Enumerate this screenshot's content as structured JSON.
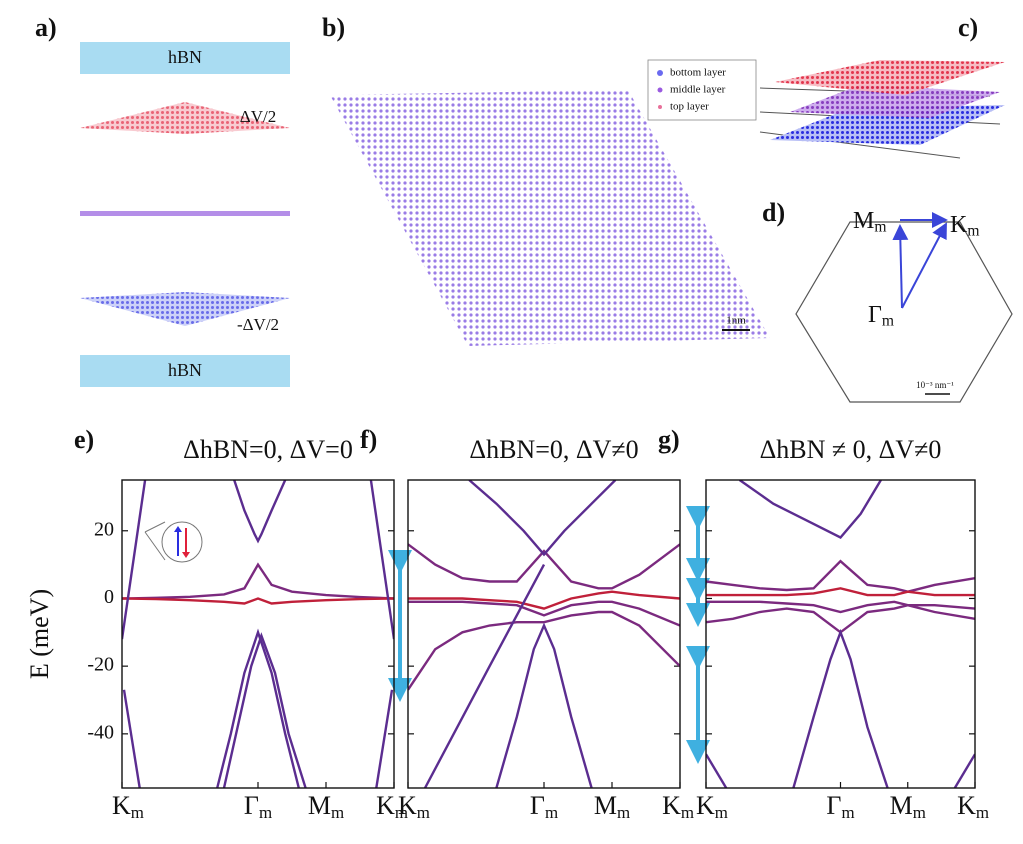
{
  "panels": {
    "a": {
      "label": "a)",
      "top_layer": "hBN",
      "bottom_layer": "hBN",
      "top_potential": "ΔV/2",
      "bottom_potential": "-ΔV/2"
    },
    "b": {
      "label": "b)",
      "legend": [
        "bottom layer",
        "middle layer",
        "top layer"
      ],
      "scale_bar": "1nm"
    },
    "c": {
      "label": "c)"
    },
    "d": {
      "label": "d)",
      "points": [
        "Mm",
        "Km",
        "Γm"
      ],
      "scale_bar": "10⁻³ nm⁻¹"
    }
  },
  "chart_data": [
    {
      "type": "line",
      "panel_label": "e)",
      "title": "ΔhBN=0, ΔV=0",
      "ylabel": "E (meV)",
      "ylim": [
        -56,
        35
      ],
      "yticks": [
        -40,
        -20,
        0,
        20
      ],
      "xlim": [
        0,
        4
      ],
      "xticks": [
        {
          "value": 0,
          "label": "Km"
        },
        {
          "value": 2,
          "label": "Γm"
        },
        {
          "value": 3,
          "label": "Mm"
        },
        {
          "value": 4,
          "label": "Km"
        }
      ],
      "series": [
        {
          "color": "#7b2a7f",
          "x": [
            0,
            0.5,
            1,
            1.5,
            1.8,
            2,
            2.2,
            2.5,
            3,
            3.5,
            4
          ],
          "values": [
            0,
            0.2,
            0.5,
            1.2,
            3,
            10,
            4,
            2,
            1,
            0.4,
            0
          ]
        },
        {
          "color": "#c0203a",
          "x": [
            0,
            0.5,
            1,
            1.5,
            1.8,
            2,
            2.2,
            2.5,
            3,
            3.5,
            4
          ],
          "values": [
            0,
            -0.2,
            -0.5,
            -1,
            -1.5,
            0,
            -1.5,
            -1,
            -0.5,
            -0.2,
            0
          ]
        },
        {
          "color": "#5b2d90",
          "x": [
            1.65,
            1.8,
            1.95,
            2,
            2.05,
            2.2,
            2.4
          ],
          "values": [
            35,
            26,
            19,
            17,
            19,
            26,
            35
          ]
        },
        {
          "color": "#5b2d90",
          "x": [
            1.4,
            1.6,
            1.8,
            2,
            2.2,
            2.4,
            2.6
          ],
          "values": [
            -56,
            -40,
            -22,
            -10,
            -22,
            -40,
            -56
          ]
        },
        {
          "color": "#5b2d90",
          "x": [
            1.5,
            1.7,
            1.9,
            2.05,
            2.25,
            2.45,
            2.7
          ],
          "values": [
            -56,
            -38,
            -20,
            -11,
            -22,
            -40,
            -56
          ]
        },
        {
          "color": "#5b2d90",
          "x": [
            0,
            0.34
          ],
          "values": [
            -12,
            35
          ]
        },
        {
          "color": "#5b2d90",
          "x": [
            0.03,
            0.26
          ],
          "values": [
            -27,
            -56
          ]
        },
        {
          "color": "#5b2d90",
          "x": [
            3.66,
            4
          ],
          "values": [
            35,
            -12
          ]
        },
        {
          "color": "#5b2d90",
          "x": [
            3.74,
            3.97
          ],
          "values": [
            -56,
            -27
          ]
        }
      ]
    },
    {
      "type": "line",
      "panel_label": "f)",
      "title": "ΔhBN=0, ΔV≠0",
      "ylim": [
        -56,
        35
      ],
      "xlim": [
        0,
        4
      ],
      "xticks": [
        {
          "value": 0,
          "label": "Km"
        },
        {
          "value": 2,
          "label": "Γm"
        },
        {
          "value": 3,
          "label": "Mm"
        },
        {
          "value": 4,
          "label": "Km"
        }
      ],
      "series": [
        {
          "color": "#7b2a7f",
          "x": [
            0,
            0.4,
            0.8,
            1.2,
            1.6,
            2,
            2.4,
            2.8,
            3,
            3.4,
            4
          ],
          "values": [
            16,
            10,
            6,
            5,
            5,
            14,
            5,
            3,
            3,
            7,
            16
          ]
        },
        {
          "color": "#c0203a",
          "x": [
            0,
            0.4,
            0.8,
            1.2,
            1.6,
            2,
            2.4,
            2.8,
            3,
            3.4,
            4
          ],
          "values": [
            0,
            0,
            0,
            -0.5,
            -1,
            -3,
            0,
            1.5,
            2,
            1,
            0
          ]
        },
        {
          "color": "#7b2a7f",
          "x": [
            0,
            0.4,
            0.8,
            1.2,
            1.6,
            2,
            2.4,
            2.8,
            3,
            3.4,
            4
          ],
          "values": [
            -1,
            -1,
            -1,
            -1.5,
            -2,
            -5,
            -2,
            -1,
            -1,
            -3,
            -8
          ]
        },
        {
          "color": "#7b2a7f",
          "x": [
            0,
            0.4,
            0.8,
            1.2,
            1.6,
            2,
            2.4,
            2.8,
            3,
            3.4,
            4
          ],
          "values": [
            -27,
            -15,
            -10,
            -8,
            -7,
            -7,
            -5,
            -4,
            -4,
            -8,
            -20
          ]
        },
        {
          "color": "#5b2d90",
          "x": [
            0.9,
            1.3,
            1.7,
            2,
            2.3,
            2.7,
            3.05
          ],
          "values": [
            35,
            28,
            20,
            13,
            20,
            28,
            35
          ]
        },
        {
          "color": "#5b2d90",
          "x": [
            1.3,
            1.6,
            1.85,
            2,
            2.15,
            2.4,
            2.7
          ],
          "values": [
            -56,
            -35,
            -15,
            -8,
            -15,
            -35,
            -56
          ]
        },
        {
          "color": "#5b2d90",
          "x": [
            0.25,
            1.2,
            2
          ],
          "values": [
            -56,
            -20,
            10
          ]
        }
      ]
    },
    {
      "type": "line",
      "panel_label": "g)",
      "title": "ΔhBN ≠ 0, ΔV≠0",
      "ylim": [
        -56,
        35
      ],
      "xlim": [
        0,
        4
      ],
      "xticks": [
        {
          "value": 0,
          "label": "Km"
        },
        {
          "value": 2,
          "label": "Γm"
        },
        {
          "value": 3,
          "label": "Mm"
        },
        {
          "value": 4,
          "label": "Km"
        }
      ],
      "series": [
        {
          "color": "#7b2a7f",
          "x": [
            0,
            0.4,
            0.8,
            1.2,
            1.6,
            2,
            2.4,
            2.8,
            3,
            3.4,
            4
          ],
          "values": [
            5,
            4,
            3,
            2.5,
            3,
            11,
            4,
            3,
            2,
            4,
            6
          ]
        },
        {
          "color": "#c0203a",
          "x": [
            0,
            0.4,
            0.8,
            1.2,
            1.6,
            2,
            2.4,
            2.8,
            3,
            3.4,
            4
          ],
          "values": [
            1,
            1,
            1,
            1,
            1.5,
            3,
            1,
            1,
            2,
            1,
            1
          ]
        },
        {
          "color": "#7b2a7f",
          "x": [
            0,
            0.4,
            0.8,
            1.2,
            1.6,
            2,
            2.4,
            2.8,
            3,
            3.4,
            4
          ],
          "values": [
            -1,
            -1,
            -1,
            -1.5,
            -2,
            -4,
            -2,
            -1,
            -2,
            -2,
            -3
          ]
        },
        {
          "color": "#7b2a7f",
          "x": [
            0,
            0.4,
            0.8,
            1.2,
            1.6,
            2,
            2.4,
            2.8,
            3,
            3.4,
            4
          ],
          "values": [
            -7,
            -6,
            -4,
            -3,
            -4,
            -10,
            -4,
            -3,
            -2,
            -4,
            -6
          ]
        },
        {
          "color": "#5b2d90",
          "x": [
            0.5,
            1,
            1.5,
            2,
            2.3,
            2.6
          ],
          "values": [
            35,
            28,
            23,
            18,
            25,
            35
          ]
        },
        {
          "color": "#5b2d90",
          "x": [
            1.3,
            1.6,
            1.85,
            2,
            2.15,
            2.4,
            2.7
          ],
          "values": [
            -56,
            -35,
            -18,
            -10,
            -18,
            -38,
            -56
          ]
        },
        {
          "color": "#5b2d90",
          "x": [
            0,
            0.3
          ],
          "values": [
            -46,
            -56
          ]
        },
        {
          "color": "#5b2d90",
          "x": [
            3.7,
            4
          ],
          "values": [
            -56,
            -46
          ]
        }
      ]
    }
  ]
}
